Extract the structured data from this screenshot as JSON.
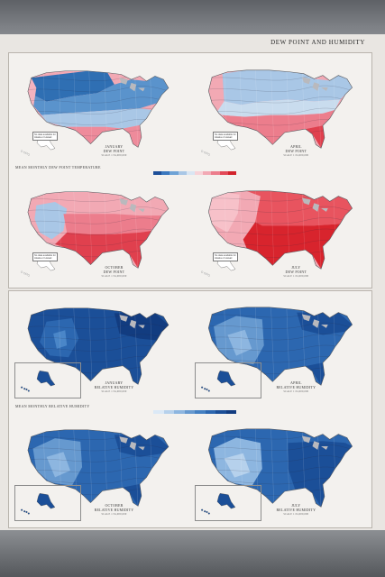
{
  "header": {
    "title": "DEW POINT AND HUMIDITY"
  },
  "sections": {
    "dew_label": "MEAN MONTHLY DEW POINT TEMPERATURE",
    "rh_label": "MEAN MONTHLY RELATIVE HUMIDITY"
  },
  "colors": {
    "frame": "#6f7276",
    "sheet": "#e9e6e2",
    "dew_cold": "#2f6fb3",
    "dew_mild": "#a9c7e6",
    "dew_warm": "#f08a9a",
    "dew_hot": "#e0262e",
    "rh_low": "#c6dcf0",
    "rh_mid": "#4a86c8",
    "rh_high": "#123f8f"
  },
  "legend_dew": [
    "#1d4f99",
    "#3a78bf",
    "#6ea3d6",
    "#a9c7e6",
    "#d9e6f3",
    "#f7d3d8",
    "#f2a9b4",
    "#ec7d8c",
    "#e34a58",
    "#d2232b"
  ],
  "legend_rh": [
    "#dbe9f6",
    "#b6d1ec",
    "#8db6e0",
    "#6699cf",
    "#4480c2",
    "#2c67b0",
    "#1b4f98",
    "#123c80"
  ],
  "maps": [
    {
      "id": "jan-dew",
      "kind": "dew",
      "mode": "cold",
      "month": "JANUARY",
      "type": "DEW POINT",
      "scale": "SCALE 1:34,000,000"
    },
    {
      "id": "apr-dew",
      "kind": "dew",
      "mode": "spring",
      "month": "APRIL",
      "type": "DEW POINT",
      "scale": "SCALE 1:34,000,000"
    },
    {
      "id": "oct-dew",
      "kind": "dew",
      "mode": "autumn",
      "month": "OCTOBER",
      "type": "DEW POINT",
      "scale": "SCALE 1:34,000,000"
    },
    {
      "id": "jul-dew",
      "kind": "dew",
      "mode": "hot",
      "month": "JULY",
      "type": "DEW POINT",
      "scale": "SCALE 1:34,000,000"
    },
    {
      "id": "jan-rh",
      "kind": "rh",
      "mode": "high",
      "month": "JANUARY",
      "type": "RELATIVE HUMIDITY",
      "scale": "SCALE 1:34,000,000"
    },
    {
      "id": "apr-rh",
      "kind": "rh",
      "mode": "mid",
      "month": "APRIL",
      "type": "RELATIVE HUMIDITY",
      "scale": "SCALE 1:34,000,000"
    },
    {
      "id": "oct-rh",
      "kind": "rh",
      "mode": "mid",
      "month": "OCTOBER",
      "type": "RELATIVE HUMIDITY",
      "scale": "SCALE 1:34,000,000"
    },
    {
      "id": "jul-rh",
      "kind": "rh",
      "mode": "low",
      "month": "JULY",
      "type": "RELATIVE HUMIDITY",
      "scale": "SCALE 1:34,000,000"
    }
  ],
  "notes": {
    "no_data": "No data available for Alaska or Hawaii"
  }
}
